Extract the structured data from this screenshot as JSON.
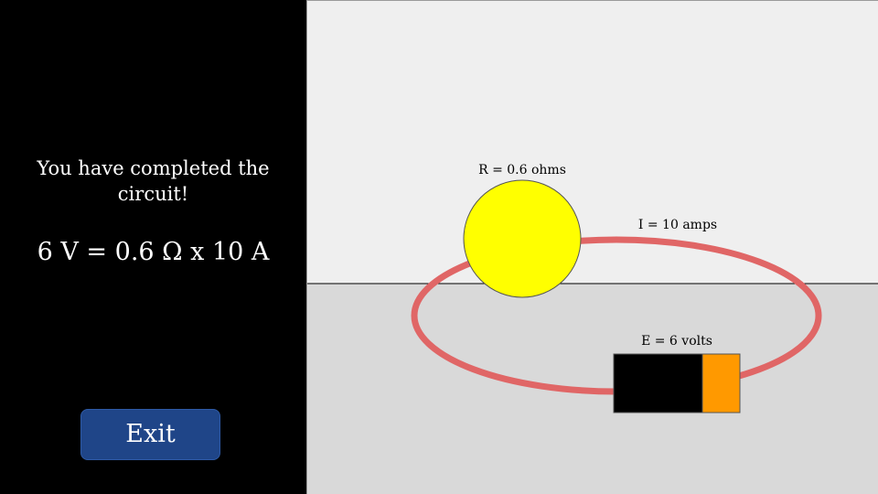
{
  "sidebar": {
    "message": "You have completed the circuit!",
    "equation": "6 V = 0.6 Ω x 10 A",
    "exit_label": "Exit"
  },
  "circuit": {
    "resistance_label": "R = 0.6 ohms",
    "current_label": "I = 10 amps",
    "voltage_label": "E = 6 volts"
  },
  "colors": {
    "sidebar_background": "#000000",
    "wall": "#efefef",
    "table": "#d9d9d9",
    "wire": "#e06666",
    "bulb": "#ffff00",
    "battery_body": "#000000",
    "battery_terminal": "#ff9900",
    "exit_button": "#1f4588"
  }
}
